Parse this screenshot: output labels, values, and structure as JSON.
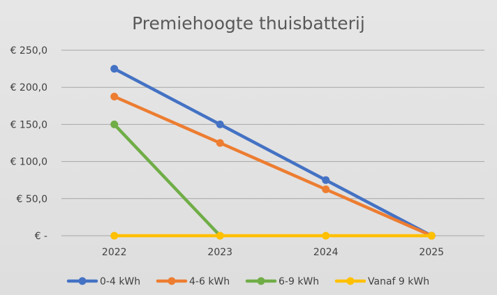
{
  "chart_data": {
    "type": "line",
    "title": "Premiehoogte thuisbatterij",
    "xlabel": "",
    "ylabel": "",
    "categories": [
      "2022",
      "2023",
      "2024",
      "2025"
    ],
    "y_tick_labels": [
      "€ -",
      "€ 50,0",
      "€ 100,0",
      "€ 150,0",
      "€ 200,0",
      "€ 250,0"
    ],
    "y_ticks": [
      0,
      50,
      100,
      150,
      200,
      250
    ],
    "ylim": [
      0,
      250
    ],
    "grid": true,
    "legend_position": "bottom",
    "series": [
      {
        "name": "0-4 kWh",
        "color": "#4472C4",
        "values": [
          225,
          150,
          75,
          0
        ]
      },
      {
        "name": "4-6 kWh",
        "color": "#ED7D31",
        "values": [
          187.5,
          125,
          62.5,
          0
        ]
      },
      {
        "name": "6-9 kWh",
        "color": "#70AD47",
        "values": [
          150,
          0,
          null,
          null
        ]
      },
      {
        "name": "Vanaf 9 kWh",
        "color": "#FFC000",
        "values": [
          0,
          0,
          0,
          0
        ]
      }
    ]
  }
}
